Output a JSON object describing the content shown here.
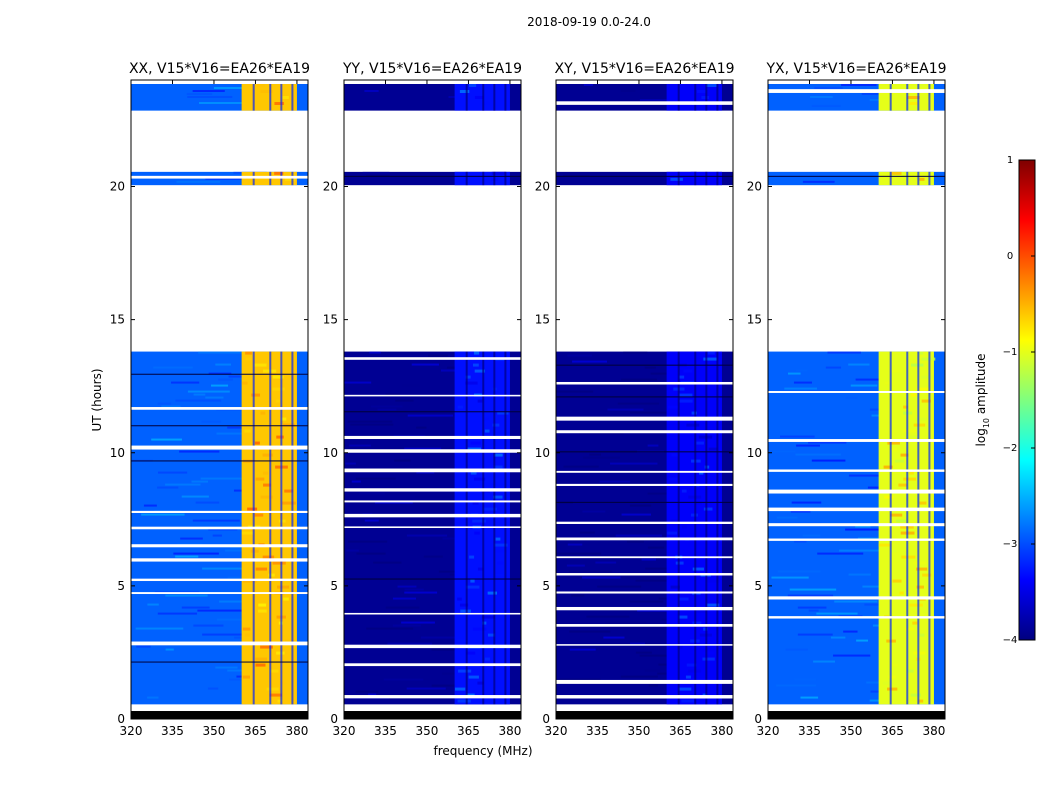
{
  "figure": {
    "suptitle": "2018-09-19 0.0-24.0",
    "xlabel": "frequency (MHz)",
    "ylabel": "UT (hours)"
  },
  "colorbar": {
    "label_prefix": "log",
    "label_sub": "10",
    "label_suffix": " amplitude",
    "ticks": [
      "1",
      "0",
      "−1",
      "−2",
      "−3",
      "−4"
    ],
    "tick_values": [
      1,
      0,
      -1,
      -2,
      -3,
      -4
    ],
    "range": [
      -4,
      1
    ],
    "colormap": "jet",
    "colors": [
      "#00007f",
      "#0000ff",
      "#007fff",
      "#00ffff",
      "#7fff7f",
      "#ffff00",
      "#ff7f00",
      "#ff0000",
      "#7f0000"
    ]
  },
  "chart_data": {
    "type": "heatmap",
    "x_ticks": [
      320,
      335,
      350,
      365,
      380
    ],
    "x_tick_labels": [
      "320",
      "335",
      "350",
      "365",
      "380"
    ],
    "xlim": [
      320,
      384
    ],
    "y_ticks": [
      0,
      5,
      10,
      15,
      20
    ],
    "y_tick_labels": [
      "0",
      "5",
      "10",
      "15",
      "20"
    ],
    "ylim": [
      0,
      24
    ],
    "data_segments_hours": [
      [
        0.55,
        13.8
      ],
      [
        20.05,
        20.55
      ],
      [
        22.85,
        23.85
      ]
    ],
    "masked_hour_bands": [
      [
        0.0,
        0.3
      ]
    ],
    "rfi_band_mhz": [
      360,
      380
    ],
    "rfi_channel_lines_mhz": [
      364,
      370,
      374,
      378
    ],
    "panels": [
      {
        "title": "XX, V15*V16=EA26*EA19",
        "pol": "XX",
        "background_log_amp": -2.9,
        "rfi_log_amp": -0.6
      },
      {
        "title": "YY, V15*V16=EA26*EA19",
        "pol": "YY",
        "background_log_amp": -3.9,
        "rfi_log_amp": -3.3
      },
      {
        "title": "XY, V15*V16=EA26*EA19",
        "pol": "XY",
        "background_log_amp": -3.9,
        "rfi_log_amp": -3.4
      },
      {
        "title": "YX, V15*V16=EA26*EA19",
        "pol": "YX",
        "background_log_amp": -2.9,
        "rfi_log_amp": -1.0
      }
    ]
  }
}
